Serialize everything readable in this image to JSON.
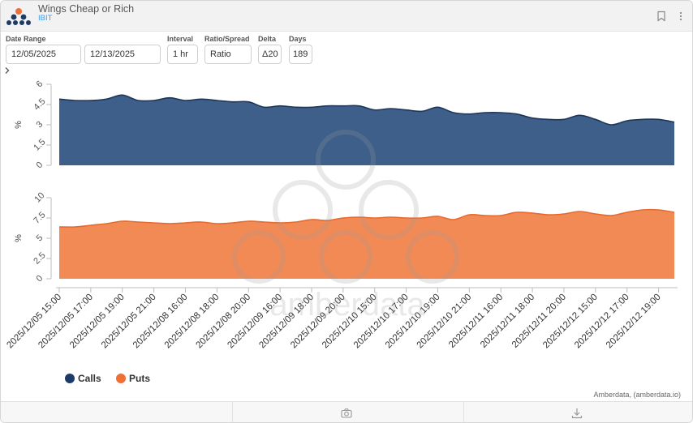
{
  "widget": {
    "title": "Wings Cheap or Rich",
    "subtitle": "IBIT",
    "credit": "Amberdata, (amberdata.io)",
    "watermark": "amberdata"
  },
  "controls": {
    "date_range_label": "Date Range",
    "start_date": "12/05/2025",
    "end_date": "12/13/2025",
    "interval_label": "Interval",
    "interval_value": "1 hr",
    "ratio_label": "Ratio/Spread",
    "ratio_value": "Ratio",
    "delta_label": "Delta",
    "delta_value": "Δ20",
    "days_label": "Days",
    "days_value": "189"
  },
  "icons": {
    "logo": "amberdata-logo-icon",
    "bookmark": "bookmark-icon",
    "menu": "more-vertical-icon",
    "expand": "chevron-right-icon",
    "camera": "camera-icon",
    "download": "download-icon"
  },
  "colors": {
    "calls": "#3d5f8a",
    "calls_line": "#1f3658",
    "puts": "#f28a55",
    "puts_line": "#e8692e",
    "calls_legend": "#1d3b66",
    "puts_legend": "#ef6f36"
  },
  "chart_data": {
    "type": "area",
    "x": [
      "2025/12/05 15:00",
      "2025/12/05 16:00",
      "2025/12/05 17:00",
      "2025/12/05 18:00",
      "2025/12/05 19:00",
      "2025/12/05 20:00",
      "2025/12/05 21:00",
      "2025/12/05 22:00",
      "2025/12/08 16:00",
      "2025/12/08 17:00",
      "2025/12/08 18:00",
      "2025/12/08 19:00",
      "2025/12/08 20:00",
      "2025/12/08 21:00",
      "2025/12/09 16:00",
      "2025/12/09 17:00",
      "2025/12/09 18:00",
      "2025/12/09 19:00",
      "2025/12/09 20:00",
      "2025/12/09 21:00",
      "2025/12/10 15:00",
      "2025/12/10 16:00",
      "2025/12/10 17:00",
      "2025/12/10 18:00",
      "2025/12/10 19:00",
      "2025/12/10 20:00",
      "2025/12/10 21:00",
      "2025/12/10 22:00",
      "2025/12/11 16:00",
      "2025/12/11 17:00",
      "2025/12/11 18:00",
      "2025/12/11 19:00",
      "2025/12/11 20:00",
      "2025/12/11 21:00",
      "2025/12/12 15:00",
      "2025/12/12 16:00",
      "2025/12/12 17:00",
      "2025/12/12 18:00",
      "2025/12/12 19:00",
      "2025/12/12 20:00"
    ],
    "tick_labels": [
      "2025/12/05 15:00",
      "2025/12/05 17:00",
      "2025/12/05 19:00",
      "2025/12/05 21:00",
      "2025/12/08 16:00",
      "2025/12/08 18:00",
      "2025/12/08 20:00",
      "2025/12/09 16:00",
      "2025/12/09 18:00",
      "2025/12/09 20:00",
      "2025/12/10 15:00",
      "2025/12/10 17:00",
      "2025/12/10 19:00",
      "2025/12/10 21:00",
      "2025/12/11 16:00",
      "2025/12/11 18:00",
      "2025/12/11 20:00",
      "2025/12/12 15:00",
      "2025/12/12 17:00",
      "2025/12/12 19:00"
    ],
    "panels": [
      {
        "name": "Calls",
        "ylabel": "%",
        "ylim": [
          0,
          6
        ],
        "yticks": [
          "0",
          "1.5",
          "3",
          "4.5",
          "6"
        ],
        "values": [
          4.9,
          4.8,
          4.8,
          4.9,
          5.2,
          4.8,
          4.8,
          5.0,
          4.8,
          4.9,
          4.8,
          4.7,
          4.7,
          4.3,
          4.4,
          4.3,
          4.3,
          4.4,
          4.4,
          4.4,
          4.1,
          4.2,
          4.1,
          4.0,
          4.3,
          3.9,
          3.8,
          3.9,
          3.9,
          3.8,
          3.5,
          3.4,
          3.4,
          3.7,
          3.4,
          3.0,
          3.3,
          3.4,
          3.4,
          3.2
        ]
      },
      {
        "name": "Puts",
        "ylabel": "%",
        "ylim": [
          0,
          10
        ],
        "yticks": [
          "0",
          "2.5",
          "5",
          "7.5",
          "10"
        ],
        "values": [
          6.4,
          6.4,
          6.6,
          6.8,
          7.1,
          7.0,
          6.9,
          6.8,
          6.9,
          7.0,
          6.8,
          6.9,
          7.1,
          7.0,
          6.9,
          7.0,
          7.3,
          7.2,
          7.5,
          7.6,
          7.5,
          7.6,
          7.5,
          7.5,
          7.7,
          7.3,
          7.9,
          7.8,
          7.8,
          8.2,
          8.1,
          7.9,
          8.0,
          8.3,
          8.0,
          7.8,
          8.2,
          8.5,
          8.5,
          8.2
        ]
      }
    ],
    "legend": [
      "Calls",
      "Puts"
    ],
    "legend_position": "bottom-left"
  }
}
